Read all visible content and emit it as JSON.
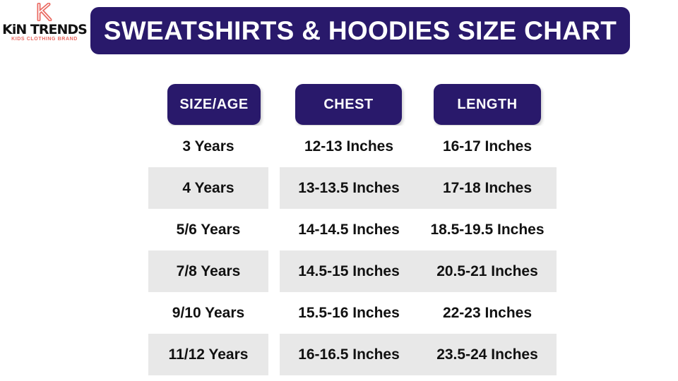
{
  "logo": {
    "brand": "KiN TRENDS",
    "tagline": "KIDS CLOTHING BRAND",
    "accent": "#ea6a62"
  },
  "title": "SWEATSHIRTS & HOODIES SIZE CHART",
  "colors": {
    "header_bg": "#29196b",
    "row_alt": "#e8e8e8"
  },
  "headers": [
    "SIZE/AGE",
    "CHEST",
    "LENGTH"
  ],
  "rows": [
    {
      "size": "3 Years",
      "chest": "12-13 Inches",
      "length": "16-17 Inches"
    },
    {
      "size": "4 Years",
      "chest": "13-13.5 Inches",
      "length": "17-18 Inches"
    },
    {
      "size": "5/6 Years",
      "chest": "14-14.5 Inches",
      "length": "18.5-19.5 Inches"
    },
    {
      "size": "7/8 Years",
      "chest": "14.5-15 Inches",
      "length": "20.5-21 Inches"
    },
    {
      "size": "9/10 Years",
      "chest": "15.5-16 Inches",
      "length": "22-23 Inches"
    },
    {
      "size": "11/12 Years",
      "chest": "16-16.5 Inches",
      "length": "23.5-24 Inches"
    }
  ]
}
